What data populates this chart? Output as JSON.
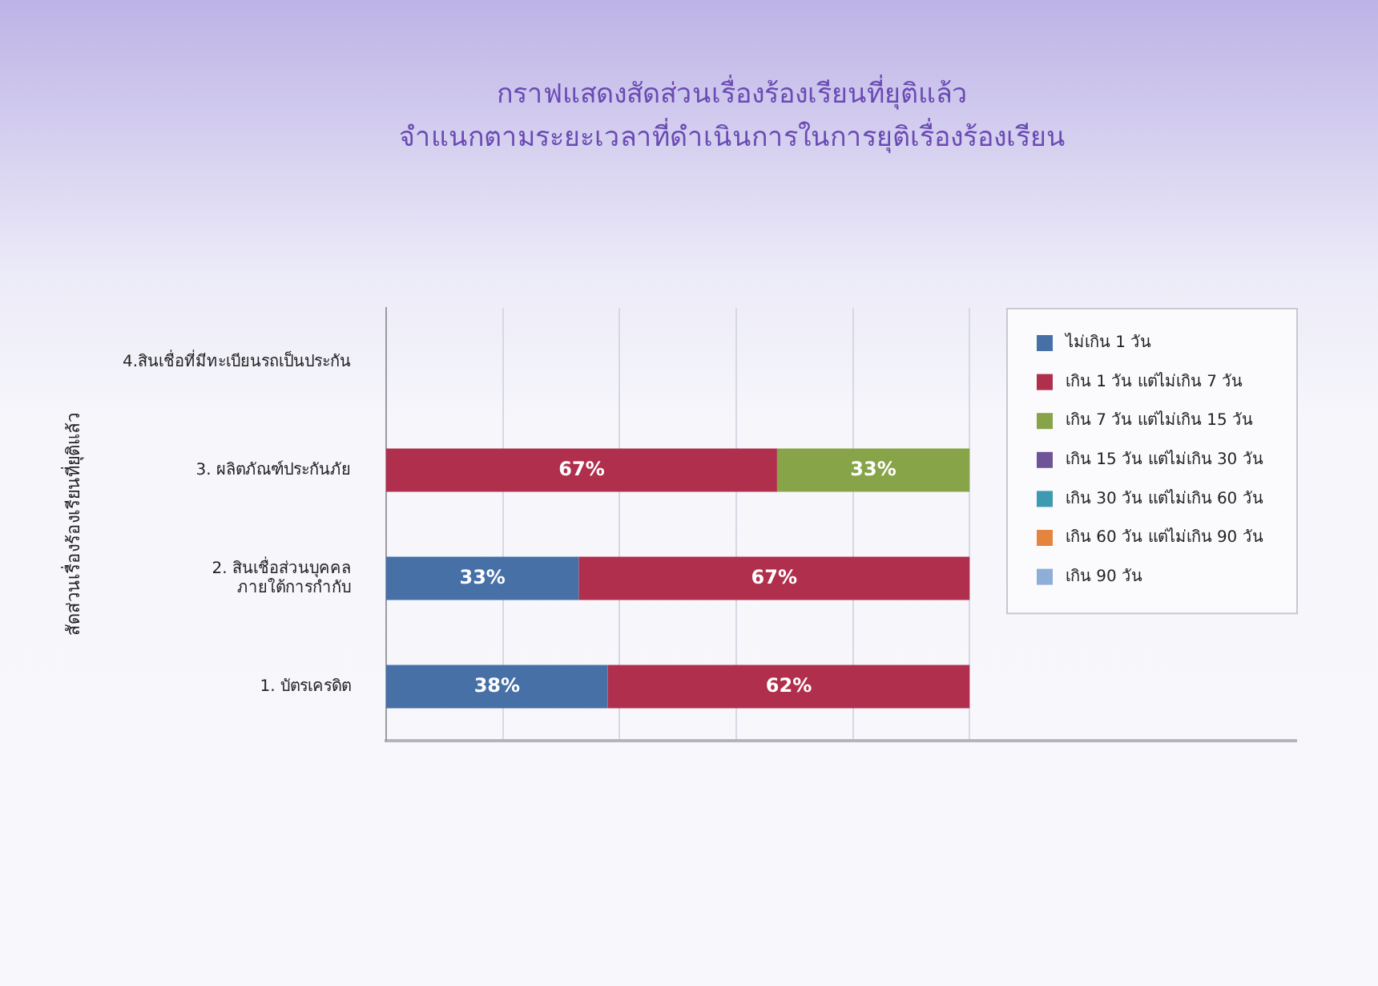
{
  "chart_data": {
    "type": "bar",
    "orientation": "horizontal",
    "stacked": true,
    "title": "กราฟแสดงสัดส่วนเรื่องร้องเรียนที่ยุติแล้ว\nจำแนกตามระยะเวลาที่ดำเนินการในการยุติเรื่องร้องเรียน",
    "ylabel": "สัดส่วนเรื่องร้องเรียนที่ยุติแล้ว",
    "categories": [
      "4.สินเชื่อที่มีทะเบียนรถเป็นประกัน",
      "3. ผลิตภัณฑ์ประกันภัย",
      "2. สินเชื่อส่วนบุคคล\nภายใต้การกำกับ",
      "1. บัตรเครดิต"
    ],
    "series": [
      {
        "name": "ไม่เกิน 1 วัน",
        "color": "#4670a6",
        "values": [
          null,
          null,
          33,
          38
        ],
        "value_labels": [
          null,
          null,
          "33%",
          "38%"
        ]
      },
      {
        "name": "เกิน 1 วัน แต่ไม่เกิน 7 วัน",
        "color": "#b02f4c",
        "values": [
          null,
          67,
          67,
          62
        ],
        "value_labels": [
          null,
          "67%",
          "67%",
          "62%"
        ]
      },
      {
        "name": "เกิน 7 วัน แต่ไม่เกิน 15 วัน",
        "color": "#87a448",
        "values": [
          null,
          33,
          null,
          null
        ],
        "value_labels": [
          null,
          "33%",
          null,
          null
        ]
      },
      {
        "name": "เกิน 15 วัน แต่ไม่เกิน 30 วัน",
        "color": "#6e5496",
        "values": [
          null,
          null,
          null,
          null
        ]
      },
      {
        "name": "เกิน 30 วัน แต่ไม่เกิน 60 วัน",
        "color": "#3e9ab0",
        "values": [
          null,
          null,
          null,
          null
        ]
      },
      {
        "name": "เกิน 60 วัน แต่ไม่เกิน 90 วัน",
        "color": "#e5843c",
        "values": [
          null,
          null,
          null,
          null
        ]
      },
      {
        "name": "เกิน 90 วัน",
        "color": "#8eaed8",
        "values": [
          null,
          null,
          null,
          null
        ]
      }
    ],
    "xlim": [
      0,
      156
    ],
    "xticks": [
      {
        "value": 20,
        "label": null
      },
      {
        "value": 40,
        "label": null
      },
      {
        "value": 60,
        "label": null
      },
      {
        "value": 80,
        "label": null
      },
      {
        "value": 100,
        "label": null
      }
    ],
    "grid": "x",
    "legend": "top right",
    "tick_labels": "y"
  }
}
